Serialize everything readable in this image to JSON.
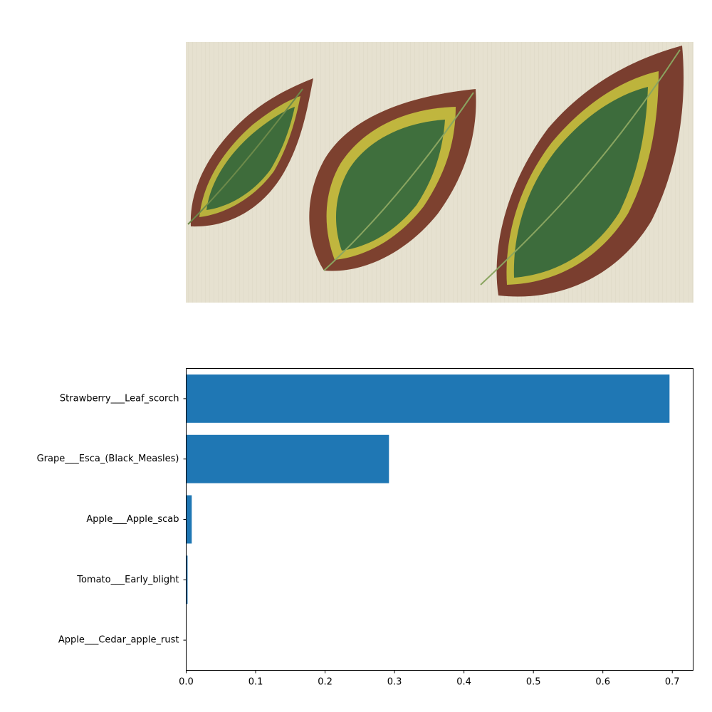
{
  "image": {
    "description_name": "diseased-leaves-photo",
    "colors": {
      "background": "#e6e1d0",
      "leaf_green": "#3f6b3a",
      "leaf_brown": "#7a3f2e",
      "leaf_yellow": "#b9b43a"
    }
  },
  "chart_data": {
    "type": "bar",
    "orientation": "horizontal",
    "categories": [
      "Strawberry___Leaf_scorch",
      "Grape___Esca_(Black_Measles)",
      "Apple___Apple_scab",
      "Tomato___Early_blight",
      "Apple___Cedar_apple_rust"
    ],
    "values": [
      0.696,
      0.292,
      0.008,
      0.002,
      0.0003
    ],
    "xlim": [
      0,
      0.73
    ],
    "xticks": [
      0.0,
      0.1,
      0.2,
      0.3,
      0.4,
      0.5,
      0.6,
      0.7
    ],
    "xtick_labels": [
      "0.0",
      "0.1",
      "0.2",
      "0.3",
      "0.4",
      "0.5",
      "0.6",
      "0.7"
    ],
    "title": "",
    "xlabel": "",
    "ylabel": "",
    "grid": false,
    "bar_color": "#1f77b4"
  }
}
